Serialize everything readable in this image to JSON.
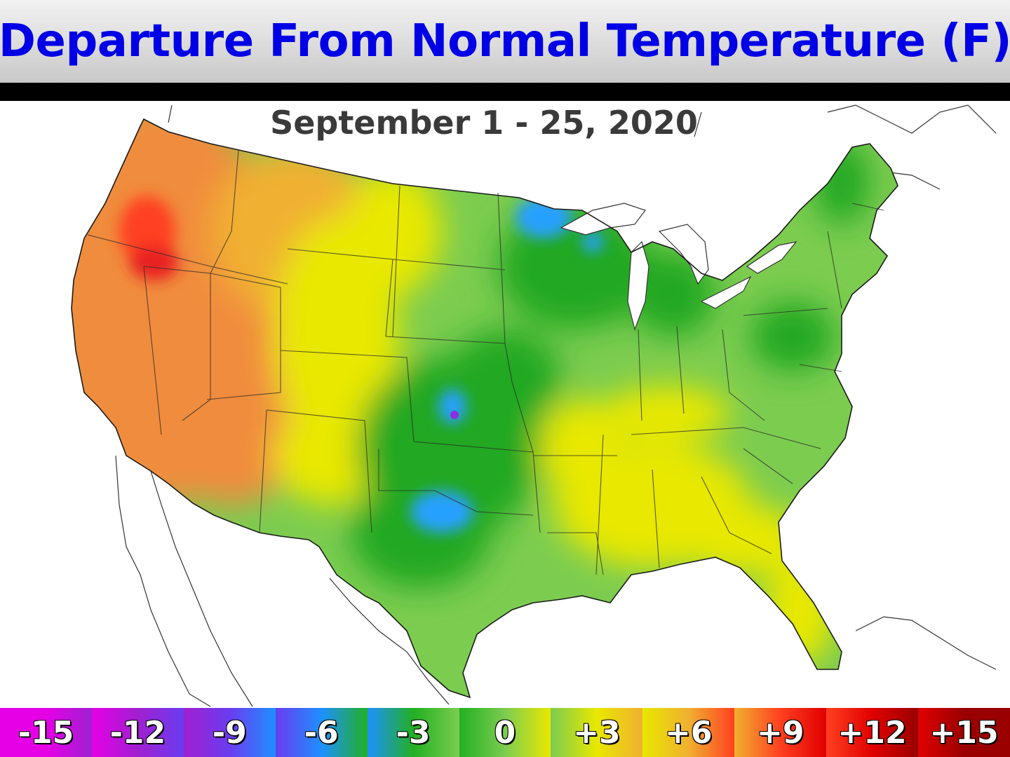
{
  "title": "Departure From Normal Temperature (F)",
  "subtitle": "September 1 - 25, 2020",
  "legend": [
    {
      "label": "-15",
      "color": "#e600e6"
    },
    {
      "label": "-12",
      "color": "#a020d0"
    },
    {
      "label": "-9",
      "color": "#6a3cf0"
    },
    {
      "label": "-6",
      "color": "#1e90ff"
    },
    {
      "label": "-3",
      "color": "#22b022"
    },
    {
      "label": "0",
      "color": "#7ccc50"
    },
    {
      "label": "+3",
      "color": "#e8e800"
    },
    {
      "label": "+6",
      "color": "#f0b030"
    },
    {
      "label": "+9",
      "color": "#ff4020"
    },
    {
      "label": "+12",
      "color": "#e00000"
    },
    {
      "label": "+15",
      "color": "#9a0000"
    }
  ],
  "colors": {
    "title_text": "#0000e6",
    "subtitle_text": "#3a3a3a",
    "warm_anomaly": "#f08c3c",
    "slight_warm": "#e8e800",
    "near_normal": "#6cc76c",
    "cool_anomaly": "#22a822",
    "cold_anomaly": "#28a0ff",
    "hot_core": "#e82020"
  }
}
